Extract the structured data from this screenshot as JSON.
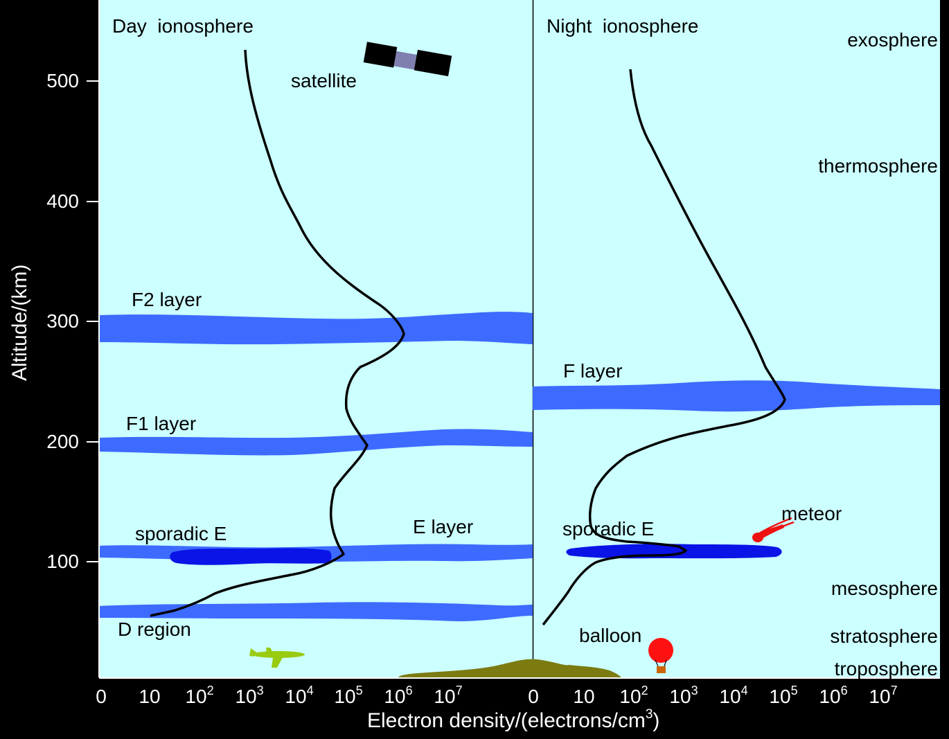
{
  "panels": {
    "day_title": "Day  ionosphere",
    "night_title": "Night  ionosphere"
  },
  "atmosphere_layers": {
    "exosphere": "exosphere",
    "thermosphere": "thermosphere",
    "mesosphere": "mesosphere",
    "stratosphere": "stratosphere",
    "troposphere": "troposphere"
  },
  "ionosphere_layers": {
    "f2": "F2 layer",
    "f1": "F1 layer",
    "e": "E layer",
    "d": "D region",
    "sporadic_e_day": "sporadic E",
    "f_night": "F layer",
    "sporadic_e_night": "sporadic E"
  },
  "objects": {
    "satellite": "satellite",
    "meteor": "meteor",
    "balloon": "balloon"
  },
  "axes": {
    "y_title": "Altitude/(km)",
    "y_ticks": [
      "500",
      "400",
      "300",
      "200",
      "100"
    ],
    "x_title_main": "Electron density/(electrons/cm",
    "x_title_sup": "3",
    "x_title_end": ")",
    "day_x_ticks": [
      {
        "base": "0",
        "exp": ""
      },
      {
        "base": "10",
        "exp": ""
      },
      {
        "base": "10",
        "exp": "2"
      },
      {
        "base": "10",
        "exp": "3"
      },
      {
        "base": "10",
        "exp": "4"
      },
      {
        "base": "10",
        "exp": "5"
      },
      {
        "base": "10",
        "exp": "6"
      },
      {
        "base": "10",
        "exp": "7"
      }
    ],
    "night_x_ticks": [
      {
        "base": "0",
        "exp": ""
      },
      {
        "base": "10",
        "exp": ""
      },
      {
        "base": "10",
        "exp": "2"
      },
      {
        "base": "10",
        "exp": "3"
      },
      {
        "base": "10",
        "exp": "4"
      },
      {
        "base": "10",
        "exp": "5"
      },
      {
        "base": "10",
        "exp": "6"
      },
      {
        "base": "10",
        "exp": "7"
      }
    ]
  },
  "colors": {
    "background": "#000000",
    "panel": "#ccffff",
    "layer_band": "#3d6bff",
    "sporadic_e": "#0a14e6",
    "profile_line": "#000000",
    "ground": "#7b7b12",
    "airplane": "#99cc11",
    "balloon": "#ff1111",
    "meteor": "#ee1111"
  }
}
